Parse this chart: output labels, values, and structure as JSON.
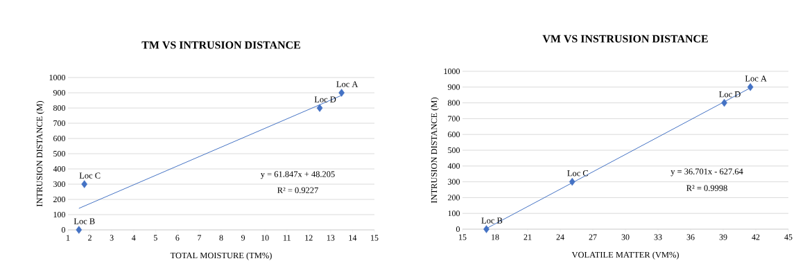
{
  "chart_data": [
    {
      "type": "scatter",
      "title": "TM VS INTRUSION DISTANCE",
      "xlabel": "TOTAL MOISTURE (TM%)",
      "ylabel": "INTRUSION DISTANCE (M)",
      "xlim": [
        1,
        15
      ],
      "xticks": [
        1,
        2,
        3,
        4,
        5,
        6,
        7,
        8,
        9,
        10,
        11,
        12,
        13,
        14,
        15
      ],
      "ylim": [
        0,
        1000
      ],
      "yticks": [
        0,
        100,
        200,
        300,
        400,
        500,
        600,
        700,
        800,
        900,
        1000
      ],
      "grid": "y",
      "marker": "diamond",
      "series": [
        {
          "color": "#4472c4",
          "x": [
            13.5,
            1.5,
            1.75,
            12.5
          ],
          "values": [
            900,
            0,
            300,
            800
          ]
        },
        {
          "type": "line",
          "color": "#4472c4",
          "marker": "none",
          "x": [
            1.5,
            13.5
          ],
          "values": [
            141,
            883
          ]
        }
      ],
      "annotations": [
        {
          "text": "Loc A",
          "x": 13.5,
          "y": 900
        },
        {
          "text": "Loc B",
          "x": 1.5,
          "y": 0
        },
        {
          "text": "Loc C",
          "x": 1.75,
          "y": 300
        },
        {
          "text": "Loc D",
          "x": 12.5,
          "y": 800
        },
        "y = 61.847x + 48.205",
        "R² = 0.9227"
      ]
    },
    {
      "type": "scatter",
      "title": "VM VS INSTRUSION DISTANCE",
      "xlabel": "VOLATILE MATTER (VM%)",
      "ylabel": "INTRUSION DISTANCE (M)",
      "xlim": [
        15,
        45
      ],
      "xticks": [
        15,
        18,
        21,
        24,
        27,
        30,
        33,
        36,
        39,
        42,
        45
      ],
      "ylim": [
        0,
        1000
      ],
      "yticks": [
        0,
        100,
        200,
        300,
        400,
        500,
        600,
        700,
        800,
        900,
        1000
      ],
      "grid": "y",
      "marker": "diamond",
      "series": [
        {
          "color": "#4472c4",
          "x": [
            41.5,
            17.2,
            25.1,
            39.1
          ],
          "values": [
            900,
            0,
            300,
            800
          ]
        },
        {
          "type": "line",
          "color": "#4472c4",
          "marker": "none",
          "x": [
            17.2,
            41.5
          ],
          "values": [
            4,
            895
          ]
        }
      ],
      "annotations": [
        {
          "text": "Loc A",
          "x": 41.5,
          "y": 900
        },
        {
          "text": "Loc B",
          "x": 17.2,
          "y": 0
        },
        {
          "text": "Loc C",
          "x": 25.1,
          "y": 300
        },
        {
          "text": "Loc D",
          "x": 39.1,
          "y": 800
        },
        "y = 36.701x - 627.64",
        "R² = 0.9998"
      ]
    }
  ]
}
